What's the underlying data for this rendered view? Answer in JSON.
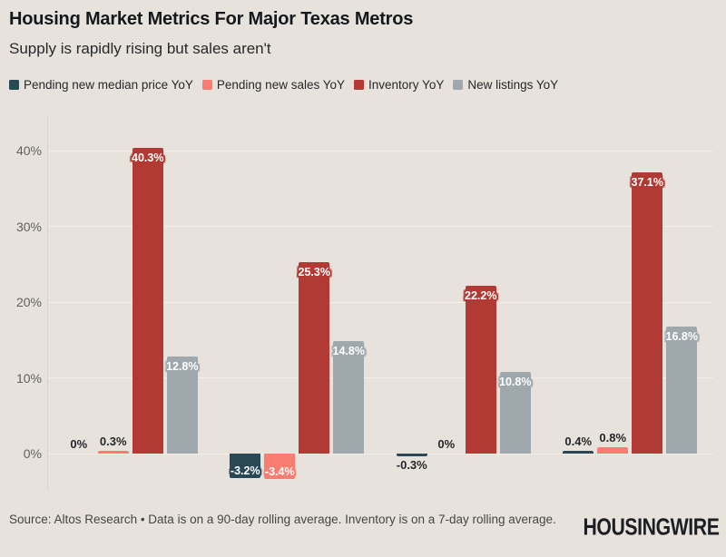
{
  "header": {
    "title": "Housing Market Metrics For Major Texas Metros",
    "subtitle": "Supply is rapidly rising but sales aren't"
  },
  "chart_data": {
    "type": "bar",
    "title": "Housing Market Metrics For Major Texas Metros",
    "subtitle": "Supply is rapidly rising but sales aren't",
    "categories": [
      "",
      "",
      "",
      ""
    ],
    "series": [
      {
        "name": "Pending new median price YoY",
        "color": "#2a4855",
        "values": [
          0,
          -3.2,
          -0.3,
          0.4
        ],
        "labels": [
          "0%",
          "-3.2%",
          "-0.3%",
          "0.4%"
        ]
      },
      {
        "name": "Pending new sales YoY",
        "color": "#f97d72",
        "values": [
          0.3,
          -3.4,
          0,
          0.8
        ],
        "labels": [
          "0.3%",
          "-3.4%",
          "0%",
          "0.8%"
        ]
      },
      {
        "name": "Inventory YoY",
        "color": "#b23a34",
        "values": [
          40.3,
          25.3,
          22.2,
          37.1
        ],
        "labels": [
          "40.3%",
          "25.3%",
          "22.2%",
          "37.1%"
        ]
      },
      {
        "name": "New listings YoY",
        "color": "#9fa8ad",
        "values": [
          12.8,
          14.8,
          10.8,
          16.8
        ],
        "labels": [
          "12.8%",
          "14.8%",
          "10.8%",
          "16.8%"
        ]
      }
    ],
    "xlabel": "",
    "ylabel": "",
    "ytick_values": [
      0,
      10,
      20,
      30,
      40
    ],
    "ytick_labels": [
      "0%",
      "10%",
      "20%",
      "30%",
      "40%"
    ],
    "ylim": [
      -5,
      44
    ],
    "grid": true,
    "legend_position": "top",
    "style": {
      "background": "#e7e3dc",
      "grid_color": "#f2efe8",
      "axis_color": "#d9d5ce",
      "tick_color": "#63615d",
      "value_label_dark": "#26272b",
      "value_label_light": "#ffffff"
    }
  },
  "footer": {
    "source": "Source: Altos Research • Data is on a 90-day rolling average. Inventory is on a 7-day rolling average.",
    "logo": "HOUSINGWIRE"
  }
}
